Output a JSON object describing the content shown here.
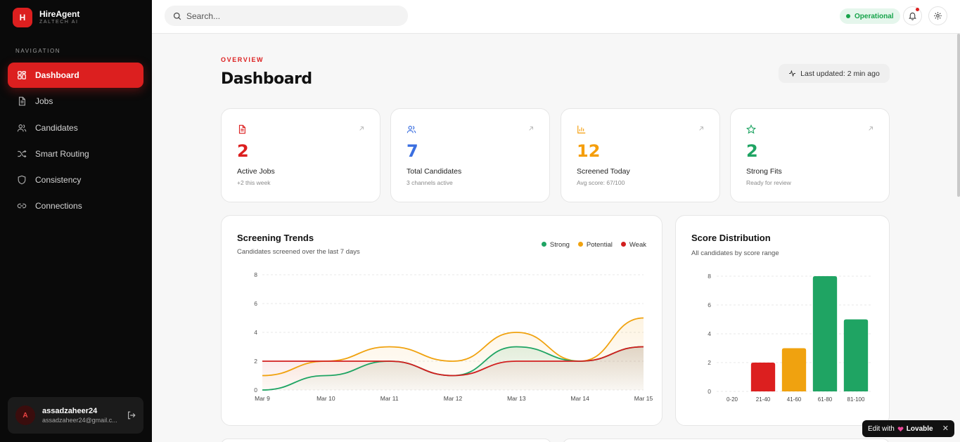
{
  "brand": {
    "logo_letter": "H",
    "name": "HireAgent",
    "sub": "ZALTECH AI"
  },
  "nav": {
    "heading": "NAVIGATION",
    "items": [
      {
        "label": "Dashboard",
        "icon": "dashboard-icon",
        "active": true
      },
      {
        "label": "Jobs",
        "icon": "file-icon"
      },
      {
        "label": "Candidates",
        "icon": "users-icon"
      },
      {
        "label": "Smart Routing",
        "icon": "shuffle-icon"
      },
      {
        "label": "Consistency",
        "icon": "shield-icon"
      },
      {
        "label": "Connections",
        "icon": "link-icon"
      }
    ]
  },
  "user": {
    "initial": "A",
    "name": "assadzaheer24",
    "email": "assadzaheer24@gmail.c..."
  },
  "topbar": {
    "search_placeholder": "Search...",
    "status": "Operational"
  },
  "header": {
    "overline": "OVERVIEW",
    "title": "Dashboard",
    "last_updated": "Last updated: 2 min ago"
  },
  "stats": [
    {
      "value": "2",
      "label": "Active Jobs",
      "sub": "+2 this week",
      "color": "#dc1f1f",
      "icon": "file-icon"
    },
    {
      "value": "7",
      "label": "Total Candidates",
      "sub": "3 channels active",
      "color": "#3b6fe0",
      "icon": "users-icon"
    },
    {
      "value": "12",
      "label": "Screened Today",
      "sub": "Avg score: 67/100",
      "color": "#f59e0b",
      "icon": "bar-chart-icon"
    },
    {
      "value": "2",
      "label": "Strong Fits",
      "sub": "Ready for review",
      "color": "#1fa463",
      "icon": "star-icon"
    }
  ],
  "colors": {
    "accent": "#dc1f1f",
    "strong": "#1fa463",
    "potential": "#f0a20f",
    "weak": "#d21f1f"
  },
  "trends": {
    "title": "Screening Trends",
    "subtitle": "Candidates screened over the last 7 days",
    "legend": [
      "Strong",
      "Potential",
      "Weak"
    ]
  },
  "distribution": {
    "title": "Score Distribution",
    "subtitle": "All candidates by score range"
  },
  "chart_data": [
    {
      "type": "area",
      "title": "Screening Trends",
      "x": [
        "Mar 9",
        "Mar 10",
        "Mar 11",
        "Mar 12",
        "Mar 13",
        "Mar 14",
        "Mar 15"
      ],
      "ylim": [
        0,
        8
      ],
      "yticks": [
        0,
        2,
        4,
        6,
        8
      ],
      "grid": true,
      "legend_position": "top-right",
      "series": [
        {
          "name": "Strong",
          "values": [
            0,
            1,
            2,
            1,
            3,
            2,
            3
          ]
        },
        {
          "name": "Potential",
          "values": [
            1,
            2,
            3,
            2,
            4,
            2,
            5
          ]
        },
        {
          "name": "Weak",
          "values": [
            2,
            2,
            2,
            1,
            2,
            2,
            3
          ]
        }
      ]
    },
    {
      "type": "bar",
      "title": "Score Distribution",
      "categories": [
        "0-20",
        "21-40",
        "41-60",
        "61-80",
        "81-100"
      ],
      "values": [
        0,
        2,
        3,
        8,
        5
      ],
      "bar_colors": [
        "#dc1f1f",
        "#dc1f1f",
        "#f0a20f",
        "#1fa463",
        "#1fa463"
      ],
      "ylim": [
        0,
        8
      ],
      "yticks": [
        0,
        2,
        4,
        6,
        8
      ],
      "grid": true
    }
  ],
  "badge": {
    "prefix": "Edit with",
    "brand": "Lovable",
    "close": "✕"
  }
}
